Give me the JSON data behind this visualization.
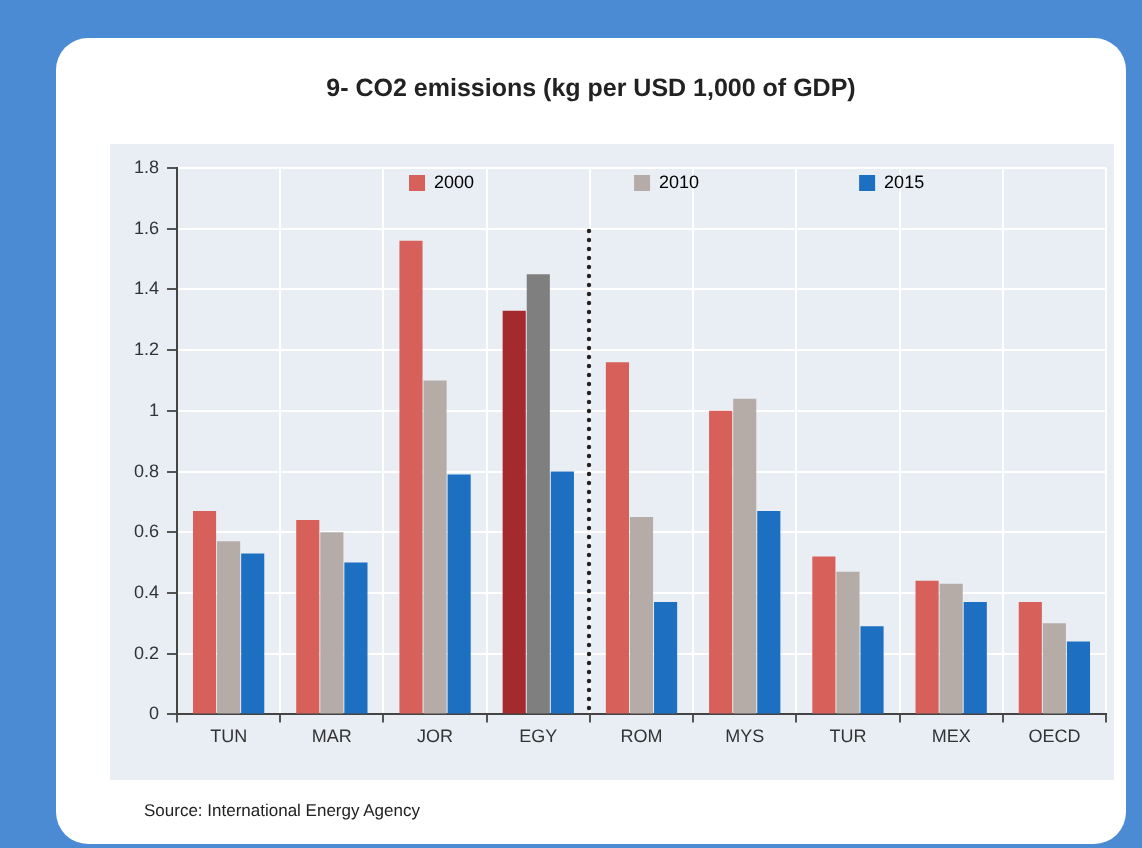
{
  "chart_data": {
    "type": "bar",
    "title": "9- CO2 emissions (kg per USD 1,000 of GDP)",
    "annotations": [
      "Source: International Energy Agency"
    ],
    "categories": [
      "TUN",
      "MAR",
      "JOR",
      "EGY",
      "ROM",
      "MYS",
      "TUR",
      "MEX",
      "OECD"
    ],
    "series": [
      {
        "name": "2000",
        "color": "#d7605a",
        "colors": [
          "#d7605a",
          "#d7605a",
          "#d7605a",
          "#a52a2e",
          "#d7605a",
          "#d7605a",
          "#d7605a",
          "#d7605a",
          "#d7605a"
        ],
        "values": [
          0.67,
          0.64,
          1.56,
          1.33,
          1.16,
          1.0,
          0.52,
          0.44,
          0.37
        ]
      },
      {
        "name": "2010",
        "color": "#b5aca8",
        "colors": [
          "#b5aca8",
          "#b5aca8",
          "#b5aca8",
          "#7f7f7f",
          "#b5aca8",
          "#b5aca8",
          "#b5aca8",
          "#b5aca8",
          "#b5aca8"
        ],
        "values": [
          0.57,
          0.6,
          1.1,
          1.45,
          0.65,
          1.04,
          0.47,
          0.43,
          0.3
        ]
      },
      {
        "name": "2015",
        "color": "#1d6fc1",
        "values": [
          0.53,
          0.5,
          0.79,
          0.8,
          0.37,
          0.67,
          0.29,
          0.37,
          0.24
        ]
      }
    ],
    "ylim": [
      0,
      1.8
    ],
    "yticks": [
      0,
      0.2,
      0.4,
      0.6,
      0.8,
      1,
      1.2,
      1.4,
      1.6,
      1.8
    ],
    "grid": true,
    "legend": "top"
  }
}
